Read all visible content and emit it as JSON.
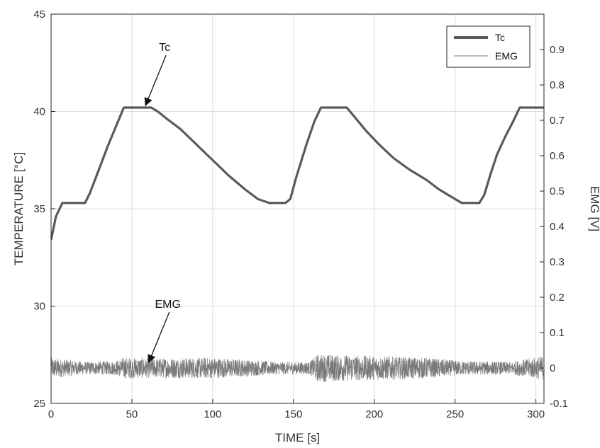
{
  "chart_data": {
    "type": "line",
    "xlabel": "TIME [s]",
    "ylabel_left": "TEMPERATURE [°C]",
    "ylabel_right": "EMG [V]",
    "xlim": [
      0,
      305
    ],
    "ylim_left": [
      25,
      45
    ],
    "ylim_right": [
      -0.1,
      1.0
    ],
    "x_ticks": [
      "0",
      "50",
      "100",
      "150",
      "200",
      "250",
      "300"
    ],
    "y_left_ticks": [
      "25",
      "30",
      "35",
      "40",
      "45"
    ],
    "y_right_ticks": [
      "-0.1",
      "0",
      "0.1",
      "0.2",
      "0.3",
      "0.4",
      "0.5",
      "0.6",
      "0.7",
      "0.8",
      "0.9"
    ],
    "grid": true,
    "legend_position": "top-right",
    "series": [
      {
        "name": "Tc",
        "axis": "left",
        "color": "#5a5a5a",
        "x": [
          0,
          3,
          7,
          12,
          21,
          24,
          30,
          35,
          40,
          45,
          55,
          62,
          66,
          72,
          80,
          90,
          100,
          110,
          120,
          128,
          135,
          140,
          145,
          148,
          152,
          158,
          163,
          167,
          175,
          183,
          187,
          195,
          203,
          212,
          222,
          232,
          240,
          248,
          254,
          259,
          265,
          268,
          272,
          276,
          281,
          286,
          290,
          296,
          300,
          305
        ],
        "values": [
          33.4,
          34.6,
          35.3,
          35.3,
          35.3,
          35.8,
          37.1,
          38.2,
          39.2,
          40.2,
          40.2,
          40.2,
          40.0,
          39.6,
          39.1,
          38.3,
          37.5,
          36.7,
          36.0,
          35.5,
          35.3,
          35.3,
          35.3,
          35.5,
          36.7,
          38.3,
          39.5,
          40.2,
          40.2,
          40.2,
          39.8,
          39.0,
          38.3,
          37.6,
          37.0,
          36.5,
          36.0,
          35.6,
          35.3,
          35.3,
          35.3,
          35.7,
          36.8,
          37.8,
          38.7,
          39.5,
          40.2,
          40.2,
          40.2,
          40.2
        ]
      },
      {
        "name": "EMG",
        "axis": "right",
        "color": "#7a7a7a",
        "x": [
          0,
          20,
          40,
          45,
          65,
          100,
          140,
          160,
          165,
          195,
          230,
          255,
          285,
          305
        ],
        "amplitude": [
          0.03,
          0.018,
          0.02,
          0.03,
          0.028,
          0.03,
          0.018,
          0.018,
          0.04,
          0.035,
          0.03,
          0.02,
          0.018,
          0.035
        ]
      }
    ],
    "annotations": [
      {
        "text": "Tc",
        "points_to": {
          "x": 58,
          "y": 40.2,
          "axis": "left"
        }
      },
      {
        "text": "EMG",
        "points_to": {
          "x": 60,
          "y": 0.01,
          "axis": "right"
        }
      }
    ]
  }
}
